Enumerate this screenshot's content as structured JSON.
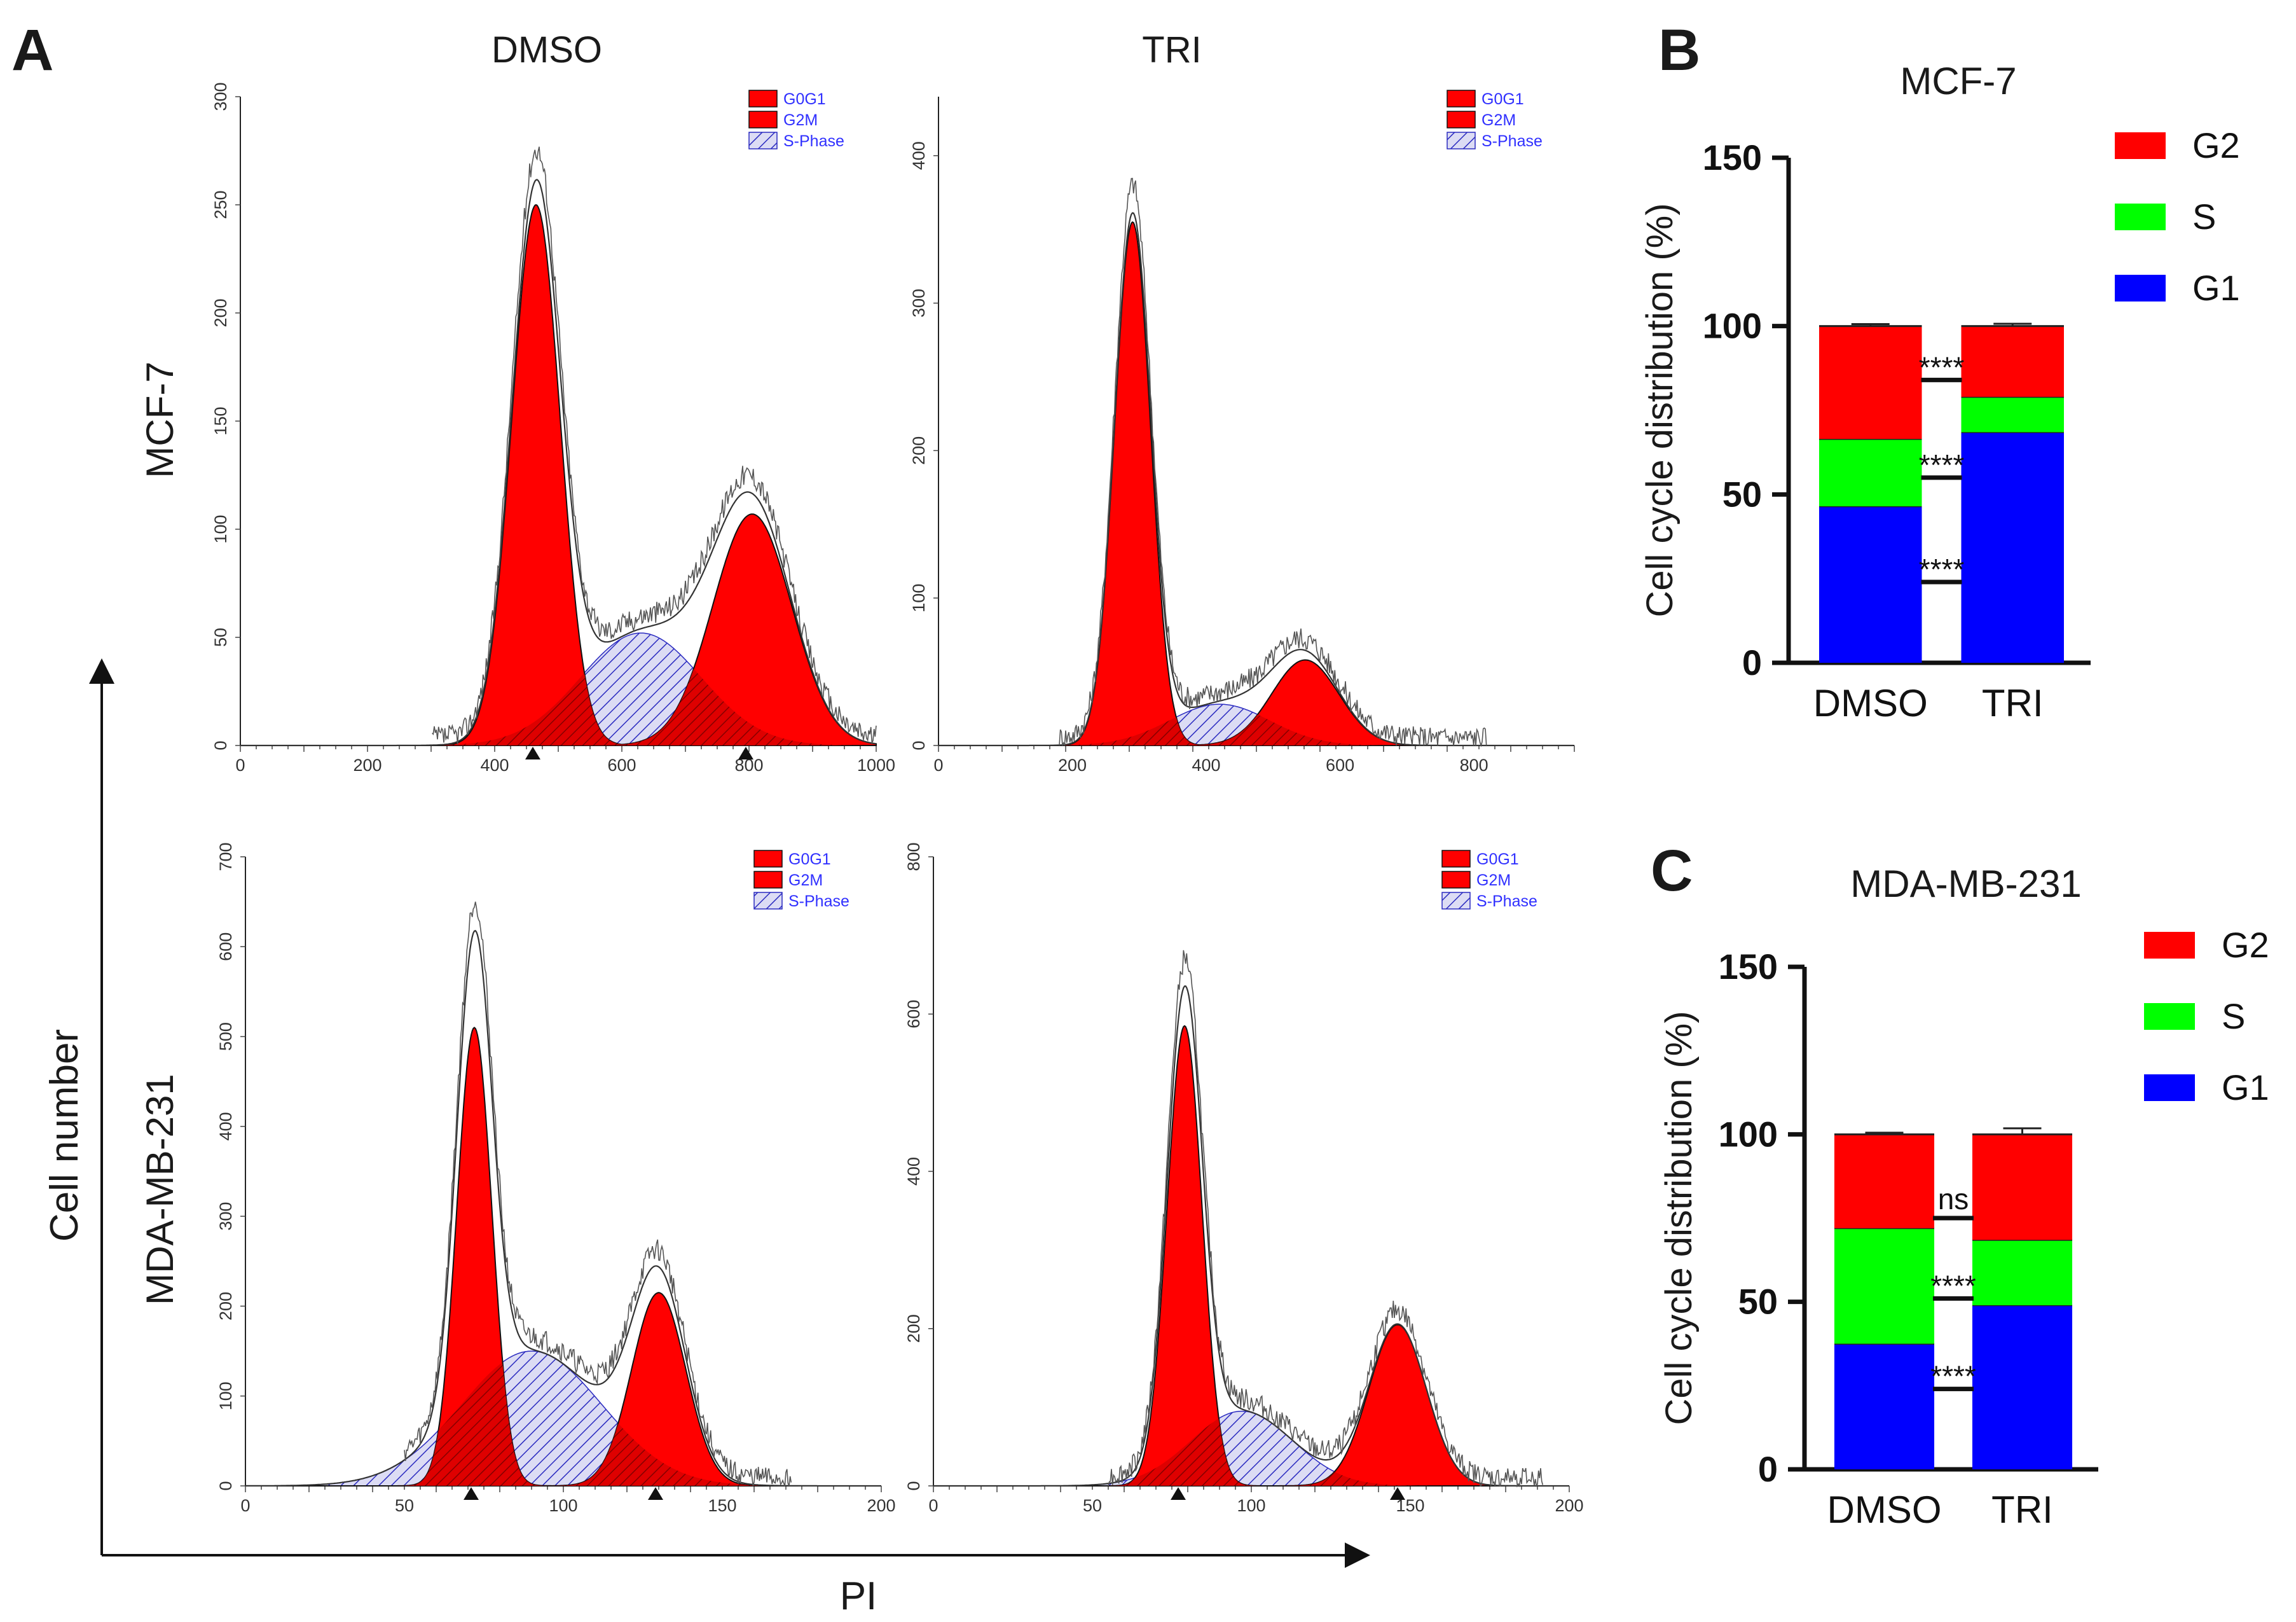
{
  "panel_labels": [
    "A",
    "B",
    "C"
  ],
  "panel_a": {
    "column_titles": [
      "DMSO",
      "TRI"
    ],
    "row_labels": [
      "MCF-7",
      "MDA-MB-231"
    ],
    "y_axis_label": "Cell number",
    "x_axis_label": "PI"
  },
  "colors": {
    "g0g1": "#ff0000",
    "s_phase_fill": "#dcdcf4",
    "s_phase_hatch": "#2a2ac0",
    "g1_bar": "#0000ff",
    "s_bar": "#00ff00",
    "g2_bar": "#ff0000",
    "legend_text": "#3030ff"
  },
  "chart_data": [
    {
      "type": "histogram",
      "panel": "A",
      "cell_line": "MCF-7",
      "treatment": "DMSO",
      "legend": [
        "G0G1",
        "G2M",
        "S-Phase"
      ],
      "x_ticks": [
        "0",
        "200",
        "400",
        "600",
        "800",
        "1000"
      ],
      "y_ticks": [
        "0",
        "50",
        "100",
        "150",
        "200",
        "250",
        "300"
      ],
      "xlim": [
        0,
        1000
      ],
      "ylim": [
        0,
        300
      ],
      "components": {
        "g0g1": {
          "mean": 465,
          "sd": 38,
          "peak": 250
        },
        "s_phase": {
          "mean": 630,
          "sd": 95,
          "peak": 52
        },
        "g2m": {
          "mean": 805,
          "sd": 62,
          "peak": 107
        }
      },
      "peak_markers_x": [
        460,
        795
      ],
      "noise_start": 300,
      "noise_end": 1000
    },
    {
      "type": "histogram",
      "panel": "A",
      "cell_line": "MCF-7",
      "treatment": "TRI",
      "legend": [
        "G0G1",
        "G2M",
        "S-Phase"
      ],
      "x_ticks": [
        "0",
        "200",
        "400",
        "600",
        "800"
      ],
      "y_ticks": [
        "0",
        "100",
        "200",
        "300",
        "400"
      ],
      "xlim": [
        0,
        950
      ],
      "ylim": [
        0,
        440
      ],
      "components": {
        "g0g1": {
          "mean": 290,
          "sd": 27,
          "peak": 355
        },
        "s_phase": {
          "mean": 420,
          "sd": 75,
          "peak": 28
        },
        "g2m": {
          "mean": 548,
          "sd": 50,
          "peak": 58
        }
      },
      "peak_markers_x": [],
      "noise_start": 180,
      "noise_end": 820
    },
    {
      "type": "histogram",
      "panel": "A",
      "cell_line": "MDA-MB-231",
      "treatment": "DMSO",
      "legend": [
        "G0G1",
        "G2M",
        "S-Phase"
      ],
      "x_ticks": [
        "0",
        "50",
        "100",
        "150",
        "200"
      ],
      "y_ticks": [
        "0",
        "100",
        "200",
        "300",
        "400",
        "500",
        "600",
        "700"
      ],
      "xlim": [
        0,
        200
      ],
      "ylim": [
        0,
        700
      ],
      "components": {
        "g0g1": {
          "mean": 72,
          "sd": 5.5,
          "peak": 510
        },
        "s_phase": {
          "mean": 90,
          "sd": 22,
          "peak": 150
        },
        "g2m": {
          "mean": 130,
          "sd": 8.5,
          "peak": 215
        }
      },
      "peak_markers_x": [
        71,
        129
      ],
      "noise_start": 50,
      "noise_end": 172
    },
    {
      "type": "histogram",
      "panel": "A",
      "cell_line": "MDA-MB-231",
      "treatment": "TRI",
      "legend": [
        "G0G1",
        "G2M",
        "S-Phase"
      ],
      "x_ticks": [
        "0",
        "50",
        "100",
        "150",
        "200"
      ],
      "y_ticks": [
        "0",
        "200",
        "400",
        "600",
        "800"
      ],
      "xlim": [
        0,
        200
      ],
      "ylim": [
        0,
        800
      ],
      "components": {
        "g0g1": {
          "mean": 79,
          "sd": 5.5,
          "peak": 585
        },
        "s_phase": {
          "mean": 97,
          "sd": 16,
          "peak": 95
        },
        "g2m": {
          "mean": 146,
          "sd": 9,
          "peak": 205
        }
      },
      "peak_markers_x": [
        77,
        146
      ],
      "noise_start": 55,
      "noise_end": 192
    },
    {
      "type": "stacked_bar",
      "panel": "B",
      "title": "MCF-7",
      "ylabel": "Cell cycle distribution (%)",
      "categories": [
        "DMSO",
        "TRI"
      ],
      "ylim": [
        0,
        150
      ],
      "y_ticks": [
        "0",
        "50",
        "100",
        "150"
      ],
      "series": [
        {
          "name": "G1",
          "values": [
            46.5,
            68.5
          ],
          "errors": [
            0.5,
            0.8
          ]
        },
        {
          "name": "S",
          "values": [
            20,
            10.5
          ],
          "errors": [
            0.5,
            0.5
          ]
        },
        {
          "name": "G2",
          "values": [
            33.5,
            21
          ],
          "errors": [
            0.6,
            0.7
          ]
        }
      ],
      "legend_order": [
        "G2",
        "S",
        "G1"
      ],
      "significance": [
        {
          "label": "****",
          "y": 84
        },
        {
          "label": "****",
          "y": 55
        },
        {
          "label": "****",
          "y": 24
        }
      ]
    },
    {
      "type": "stacked_bar",
      "panel": "C",
      "title": "MDA-MB-231",
      "ylabel": "Cell cycle distribution (%)",
      "categories": [
        "DMSO",
        "TRI"
      ],
      "ylim": [
        0,
        150
      ],
      "y_ticks": [
        "0",
        "50",
        "100",
        "150"
      ],
      "series": [
        {
          "name": "G1",
          "values": [
            37.5,
            49
          ],
          "errors": [
            0.8,
            1.5
          ]
        },
        {
          "name": "S",
          "values": [
            34.5,
            19.5
          ],
          "errors": [
            1.2,
            2.3
          ]
        },
        {
          "name": "G2",
          "values": [
            28,
            31.5
          ],
          "errors": [
            0.5,
            1.8
          ]
        }
      ],
      "legend_order": [
        "G2",
        "S",
        "G1"
      ],
      "significance": [
        {
          "label": "ns",
          "y": 75
        },
        {
          "label": "****",
          "y": 51
        },
        {
          "label": "****",
          "y": 24
        }
      ]
    }
  ]
}
